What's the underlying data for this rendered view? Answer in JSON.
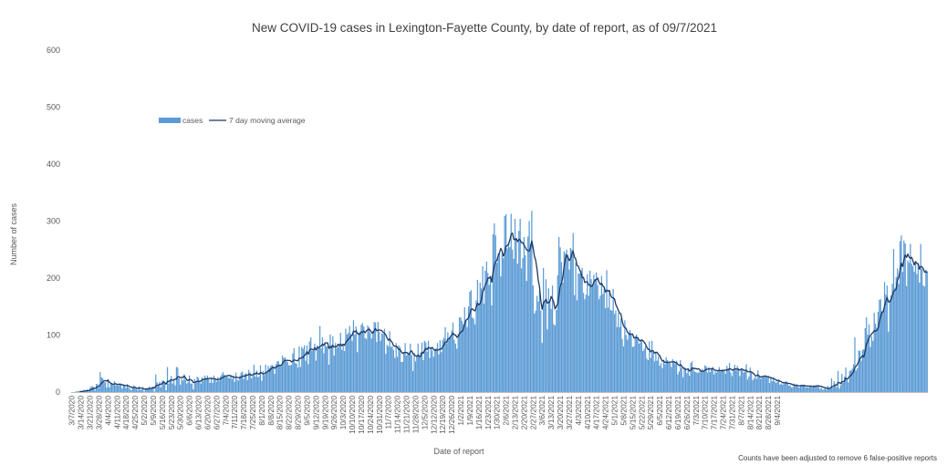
{
  "chart_data": {
    "type": "bar",
    "title": "New COVID-19 cases in Lexington-Fayette County, by date of report, as of 09/7/2021",
    "xlabel": "Date of report",
    "ylabel": "Number of cases",
    "footnote": "Counts have been adjusted to remove 6 false-positive reports",
    "ylim": [
      0,
      600
    ],
    "yticks": [
      0,
      100,
      200,
      300,
      400,
      500,
      600
    ],
    "grid": false,
    "legend_position": "top-left",
    "start_date": "3/7/2020",
    "end_date": "9/7/2021",
    "xtick_labels": [
      "3/7/2020",
      "3/14/2020",
      "3/21/2020",
      "3/28/2020",
      "4/4/2020",
      "4/11/2020",
      "4/18/2020",
      "4/25/2020",
      "5/2/2020",
      "5/9/2020",
      "5/16/2020",
      "5/23/2020",
      "5/30/2020",
      "6/6/2020",
      "6/13/2020",
      "6/20/2020",
      "6/27/2020",
      "7/4/2020",
      "7/11/2020",
      "7/18/2020",
      "7/25/2020",
      "8/1/2020",
      "8/8/2020",
      "8/15/2020",
      "8/22/2020",
      "8/29/2020",
      "9/5/2020",
      "9/12/2020",
      "9/19/2020",
      "9/26/2020",
      "10/3/2020",
      "10/10/2020",
      "10/17/2020",
      "10/24/2020",
      "10/31/2020",
      "11/7/2020",
      "11/14/2020",
      "11/21/2020",
      "11/28/2020",
      "12/5/2020",
      "12/12/2020",
      "12/19/2020",
      "12/26/2020",
      "1/2/2021",
      "1/9/2021",
      "1/16/2021",
      "1/23/2021",
      "1/30/2021",
      "2/6/2021",
      "2/13/2021",
      "2/20/2021",
      "2/27/2021",
      "3/6/2021",
      "3/13/2021",
      "3/20/2021",
      "3/27/2021",
      "4/3/2021",
      "4/10/2021",
      "4/17/2021",
      "4/24/2021",
      "5/1/2021",
      "5/8/2021",
      "5/15/2021",
      "5/22/2021",
      "5/29/2021",
      "6/5/2021",
      "6/12/2021",
      "6/19/2021",
      "6/26/2021",
      "7/3/2021",
      "7/10/2021",
      "7/17/2021",
      "7/24/2021",
      "7/31/2021",
      "8/7/2021",
      "8/14/2021",
      "8/21/2021",
      "8/28/2021",
      "9/4/2021"
    ],
    "weekly_mean_cases": [
      2,
      7,
      13,
      18,
      13,
      9,
      7,
      6,
      16,
      23,
      15,
      18,
      20,
      24,
      26,
      28,
      32,
      38,
      50,
      62,
      72,
      82,
      84,
      80,
      88,
      92,
      103,
      100,
      82,
      70,
      68,
      76,
      96,
      118,
      150,
      185,
      215,
      240,
      280,
      250,
      200,
      140,
      150,
      210,
      250,
      215,
      190,
      170,
      135,
      110,
      95,
      80,
      62,
      50,
      43,
      45,
      38,
      40,
      42,
      40,
      40,
      34,
      30,
      25,
      20,
      14,
      12,
      10,
      8,
      10,
      22,
      40,
      75,
      120,
      160,
      190,
      240,
      260,
      240
    ],
    "cases": [
      0,
      0,
      0,
      1,
      1,
      2,
      1,
      1,
      1,
      3,
      4,
      2,
      5,
      1,
      7,
      10,
      10,
      9,
      3,
      14,
      14,
      7,
      35,
      26,
      24,
      17,
      17,
      8,
      22,
      8,
      15,
      14,
      13,
      19,
      12,
      12,
      11,
      15,
      14,
      6,
      14,
      11,
      7,
      14,
      8,
      5,
      3,
      8,
      12,
      8,
      6,
      3,
      10,
      4,
      4,
      9,
      1,
      6,
      6,
      7,
      10,
      6,
      9,
      10,
      1,
      31,
      17,
      11,
      18,
      8,
      20,
      20,
      18,
      3,
      44,
      15,
      22,
      28,
      15,
      23,
      12,
      44,
      43,
      24,
      13,
      23,
      20,
      31,
      21,
      15,
      18,
      29,
      15,
      15,
      5,
      23,
      19,
      27,
      25,
      20,
      15,
      26,
      20,
      29,
      25,
      29,
      23,
      16,
      26,
      16,
      29,
      23,
      18,
      26,
      20,
      27,
      31,
      35,
      31,
      26,
      29,
      26,
      24,
      30,
      23,
      29,
      18,
      34,
      22,
      20,
      28,
      34,
      36,
      23,
      32,
      33,
      21,
      39,
      34,
      24,
      28,
      48,
      27,
      38,
      26,
      28,
      47,
      20,
      37,
      30,
      48,
      35,
      46,
      42,
      46,
      48,
      44,
      32,
      49,
      54,
      54,
      48,
      48,
      64,
      60,
      61,
      55,
      53,
      47,
      47,
      48,
      68,
      77,
      51,
      50,
      43,
      80,
      44,
      79,
      76,
      82,
      55,
      82,
      49,
      89,
      96,
      72,
      72,
      85,
      55,
      82,
      79,
      116,
      77,
      96,
      68,
      87,
      80,
      80,
      48,
      101,
      82,
      98,
      64,
      86,
      77,
      79,
      84,
      104,
      74,
      84,
      72,
      111,
      101,
      104,
      116,
      102,
      90,
      126,
      101,
      115,
      70,
      105,
      105,
      118,
      121,
      115,
      95,
      93,
      117,
      114,
      104,
      94,
      107,
      123,
      122,
      88,
      123,
      106,
      90,
      103,
      102,
      111,
      67,
      83,
      80,
      107,
      79,
      80,
      74,
      60,
      86,
      62,
      82,
      79,
      53,
      53,
      70,
      86,
      64,
      70,
      66,
      85,
      65,
      37,
      69,
      54,
      63,
      85,
      63,
      69,
      87,
      56,
      90,
      87,
      71,
      90,
      60,
      79,
      73,
      62,
      76,
      77,
      86,
      66,
      91,
      70,
      91,
      95,
      114,
      86,
      105,
      94,
      96,
      108,
      122,
      92,
      85,
      76,
      102,
      131,
      131,
      125,
      119,
      149,
      125,
      114,
      150,
      176,
      179,
      131,
      129,
      119,
      161,
      197,
      156,
      192,
      182,
      221,
      155,
      213,
      229,
      209,
      188,
      204,
      152,
      277,
      296,
      275,
      227,
      243,
      244,
      203,
      244,
      235,
      309,
      312,
      252,
      263,
      254,
      313,
      250,
      234,
      304,
      268,
      225,
      283,
      304,
      217,
      235,
      272,
      240,
      195,
      273,
      300,
      260,
      318,
      187,
      138,
      143,
      169,
      159,
      178,
      143,
      86,
      218,
      160,
      198,
      110,
      182,
      160,
      146,
      187,
      119,
      117,
      144,
      205,
      272,
      254,
      228,
      192,
      247,
      243,
      250,
      240,
      215,
      253,
      250,
      279,
      170,
      227,
      161,
      208,
      208,
      213,
      218,
      174,
      163,
      171,
      207,
      169,
      213,
      198,
      187,
      206,
      198,
      210,
      188,
      163,
      169,
      204,
      172,
      185,
      147,
      214,
      148,
      179,
      144,
      143,
      181,
      137,
      143,
      114,
      139,
      114,
      129,
      93,
      80,
      126,
      100,
      92,
      105,
      109,
      102,
      79,
      80,
      98,
      101,
      96,
      85,
      87,
      93,
      72,
      76,
      81,
      59,
      56,
      89,
      60,
      90,
      70,
      54,
      70,
      55,
      63,
      46,
      51,
      42,
      57,
      49,
      61,
      56,
      52,
      51,
      44,
      58,
      52,
      50,
      55,
      31,
      36,
      56,
      42,
      26,
      44,
      42,
      33,
      42,
      29,
      51,
      54,
      43,
      36,
      35,
      34,
      34,
      38,
      38,
      41,
      37,
      47,
      45,
      34,
      44,
      35,
      42,
      44,
      31,
      37,
      34,
      37,
      44,
      36,
      40,
      39,
      39,
      32,
      46,
      41,
      51,
      34,
      28,
      40,
      48,
      38,
      46,
      42,
      28,
      40,
      40,
      34,
      37,
      49,
      22,
      27,
      43,
      36,
      21,
      24,
      27,
      23,
      38,
      28,
      23,
      26,
      28,
      29,
      27,
      25,
      29,
      16,
      25,
      19,
      26,
      19,
      16,
      18,
      22,
      13,
      15,
      13,
      18,
      15,
      19,
      15,
      11,
      12,
      8,
      9,
      15,
      12,
      14,
      9,
      8,
      12,
      12,
      12,
      13,
      8,
      9,
      8,
      11,
      12,
      8,
      12,
      11,
      12,
      11,
      12,
      5,
      8,
      4,
      5,
      9,
      4,
      11,
      6,
      7,
      24,
      8,
      19,
      13,
      9,
      37,
      6,
      12,
      32,
      16,
      27,
      43,
      24,
      17,
      37,
      38,
      41,
      49,
      96,
      38,
      42,
      73,
      72,
      55,
      74,
      75,
      112,
      131,
      101,
      119,
      79,
      98,
      90,
      139,
      120,
      113,
      141,
      162,
      163,
      142,
      145,
      193,
      171,
      187,
      106,
      162,
      170,
      190,
      251,
      183,
      202,
      217,
      190,
      265,
      275,
      211,
      266,
      261,
      186,
      231,
      227,
      260,
      225,
      221,
      211,
      228,
      207,
      225,
      192,
      260,
      216,
      187,
      185,
      215,
      212
    ]
  },
  "legend": {
    "bar_label": "cases",
    "line_label": "7 day moving average"
  },
  "colors": {
    "bar": "#5b9bd5",
    "line": "#1f3864",
    "text": "#595959",
    "axis": "#bfbfbf"
  }
}
